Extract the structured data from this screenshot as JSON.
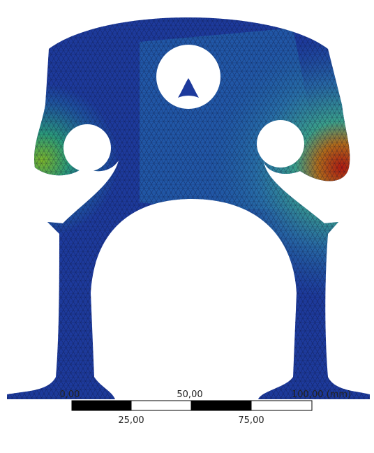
{
  "scale_bar": {
    "top_labels": [
      "0,00",
      "50,00",
      "100,00 (mm)"
    ],
    "bottom_labels": [
      "25,00",
      "75,00"
    ]
  }
}
